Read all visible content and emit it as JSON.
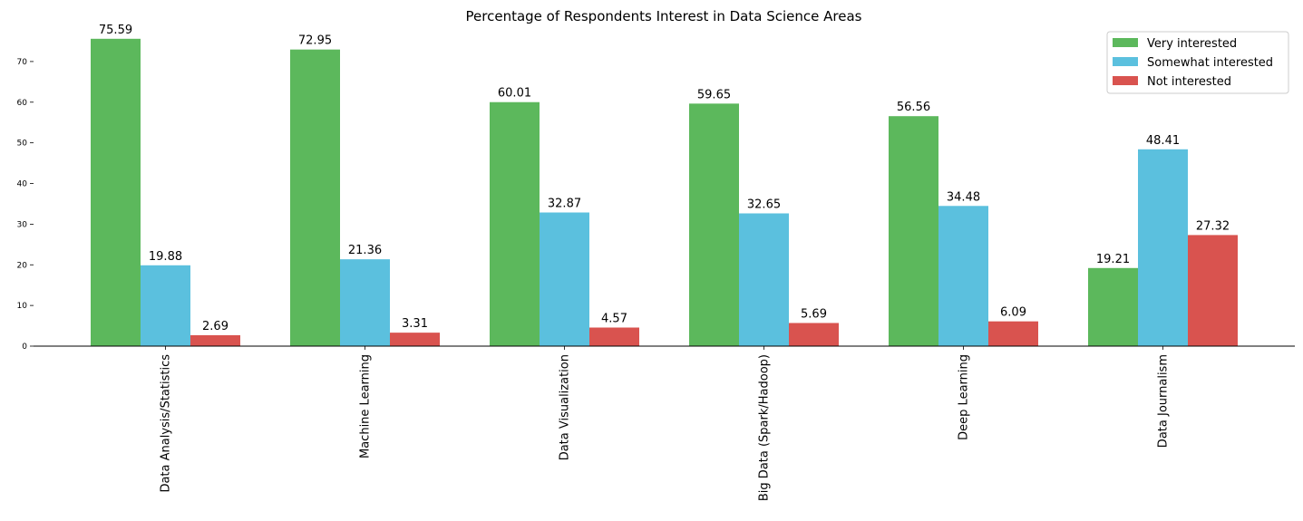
{
  "chart_data": {
    "type": "bar",
    "title": "Percentage of Respondents Interest in Data Science Areas",
    "xlabel": "",
    "ylabel": "",
    "ylim": [
      0,
      78
    ],
    "yticks": [
      0,
      10,
      20,
      30,
      40,
      50,
      60,
      70
    ],
    "grid": false,
    "legend_position": "top-right",
    "categories": [
      "Data Analysis/Statistics",
      "Machine Learning",
      "Data Visualization",
      "Big Data (Spark/Hadoop)",
      "Deep Learning",
      "Data Journalism"
    ],
    "series": [
      {
        "name": "Very interested",
        "color": "#5cb85c",
        "values": [
          75.59,
          72.95,
          60.01,
          59.65,
          56.56,
          19.21
        ]
      },
      {
        "name": "Somewhat interested",
        "color": "#5bc0de",
        "values": [
          19.88,
          21.36,
          32.87,
          32.65,
          34.48,
          48.41
        ]
      },
      {
        "name": "Not interested",
        "color": "#d9534f",
        "values": [
          2.69,
          3.31,
          4.57,
          5.69,
          6.09,
          27.32
        ]
      }
    ]
  }
}
